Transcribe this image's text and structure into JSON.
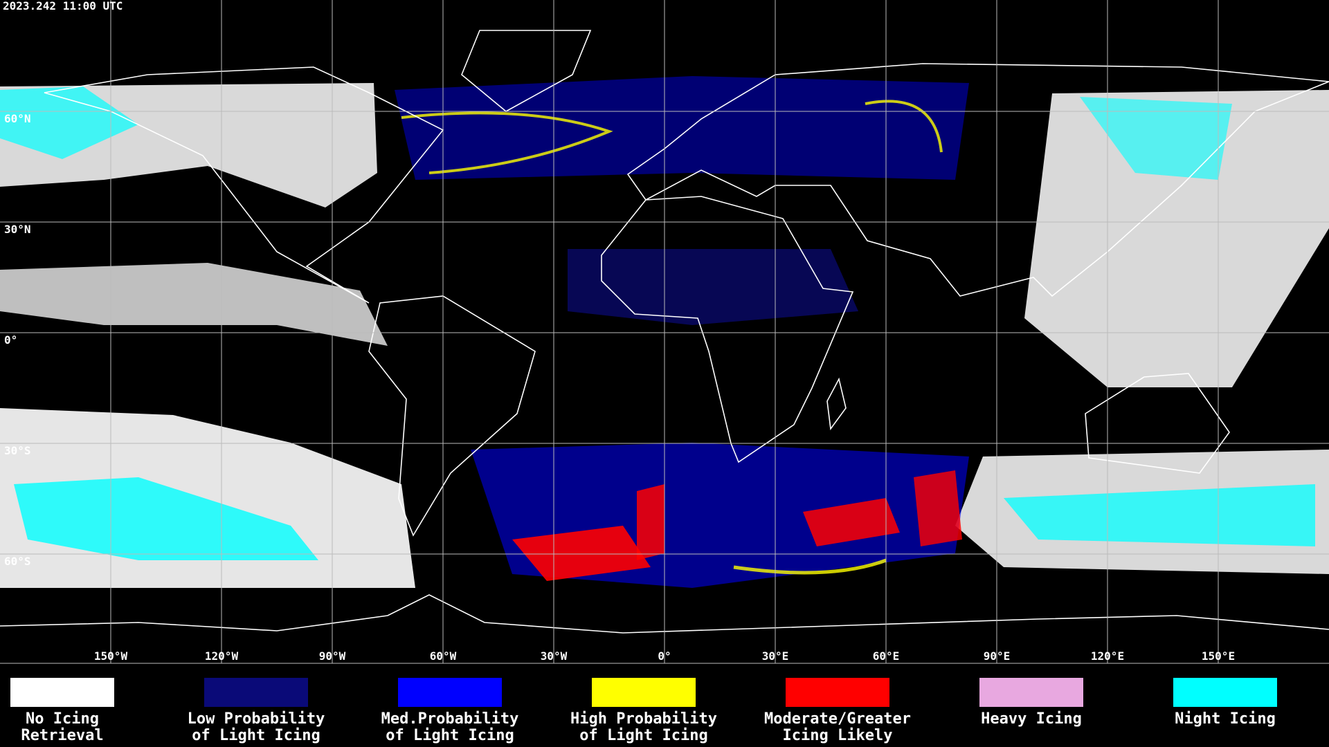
{
  "header": {
    "title": "2023.242 11:00 UTC"
  },
  "map": {
    "lat_labels": [
      {
        "value": 60,
        "label": "60°N"
      },
      {
        "value": 30,
        "label": "30°N"
      },
      {
        "value": 0,
        "label": "0°"
      },
      {
        "value": -30,
        "label": "30°S"
      },
      {
        "value": -60,
        "label": "60°S"
      }
    ],
    "lon_labels": [
      {
        "value": -150,
        "label": "150°W"
      },
      {
        "value": -120,
        "label": "120°W"
      },
      {
        "value": -90,
        "label": "90°W"
      },
      {
        "value": -60,
        "label": "60°W"
      },
      {
        "value": -30,
        "label": "30°W"
      },
      {
        "value": 0,
        "label": "0°"
      },
      {
        "value": 30,
        "label": "30°E"
      },
      {
        "value": 60,
        "label": "60°E"
      },
      {
        "value": 90,
        "label": "90°E"
      },
      {
        "value": 120,
        "label": "120°E"
      },
      {
        "value": 150,
        "label": "150°E"
      }
    ]
  },
  "legend": {
    "items": [
      {
        "color": "#ffffff",
        "lines": [
          "No Icing",
          "Retrieval"
        ]
      },
      {
        "color": "#0a0a78",
        "lines": [
          "Low Probability",
          "of Light Icing"
        ]
      },
      {
        "color": "#0000ff",
        "lines": [
          "Med.Probability",
          "of Light Icing"
        ]
      },
      {
        "color": "#ffff00",
        "lines": [
          "High Probability",
          "of Light Icing"
        ]
      },
      {
        "color": "#ff0000",
        "lines": [
          "Moderate/Greater",
          "Icing Likely"
        ]
      },
      {
        "color": "#e8a8e0",
        "lines": [
          "Heavy Icing"
        ]
      },
      {
        "color": "#00ffff",
        "lines": [
          "Night Icing"
        ]
      }
    ]
  }
}
